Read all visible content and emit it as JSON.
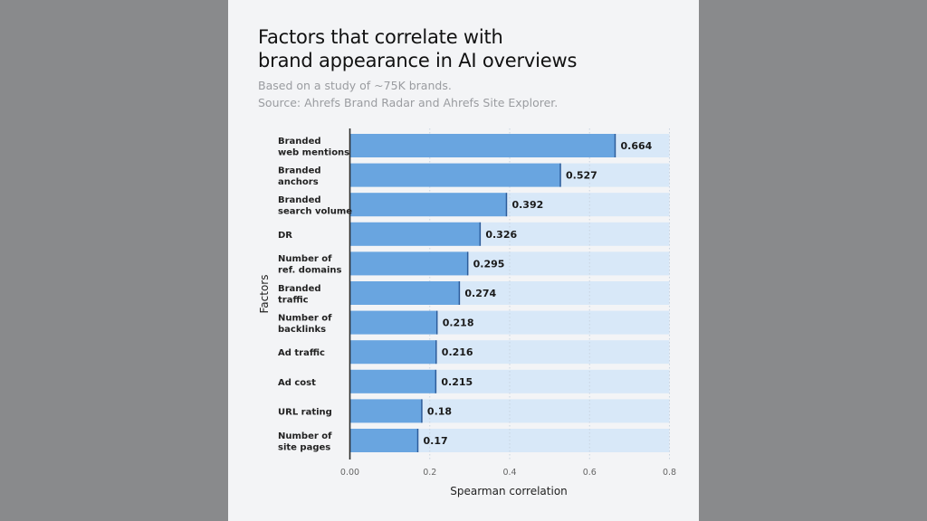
{
  "chart_data": {
    "type": "bar",
    "orientation": "horizontal",
    "title": "Factors that correlate with\nbrand appearance in AI overviews",
    "subtitle": [
      "Based on a study of ~75K brands.",
      "Source: Ahrefs Brand Radar and Ahrefs Site Explorer."
    ],
    "xlabel": "Spearman correlation",
    "ylabel": "Factors",
    "xlim": [
      0,
      0.8
    ],
    "xticks": [
      "0.00",
      "0.2",
      "0.4",
      "0.6",
      "0.8"
    ],
    "categories": [
      [
        "Branded",
        "web mentions"
      ],
      [
        "Branded",
        "anchors"
      ],
      [
        "Branded",
        "search volume"
      ],
      [
        "DR"
      ],
      [
        "Number of",
        "ref. domains"
      ],
      [
        "Branded",
        "traffic"
      ],
      [
        "Number of",
        "backlinks"
      ],
      [
        "Ad traffic"
      ],
      [
        "Ad cost"
      ],
      [
        "URL rating"
      ],
      [
        "Number of",
        "site pages"
      ]
    ],
    "values": [
      0.664,
      0.527,
      0.392,
      0.326,
      0.295,
      0.274,
      0.218,
      0.216,
      0.215,
      0.18,
      0.17
    ],
    "value_labels": [
      "0.664",
      "0.527",
      "0.392",
      "0.326",
      "0.295",
      "0.274",
      "0.218",
      "0.216",
      "0.215",
      "0.18",
      "0.17"
    ],
    "grid": "vertical dotted",
    "colors": {
      "bar": "#69a5e0",
      "bar_track": "#d8e8f8",
      "bar_edge": "#2d5c9a",
      "background": "#f3f4f6",
      "page": "#898a8c"
    }
  }
}
